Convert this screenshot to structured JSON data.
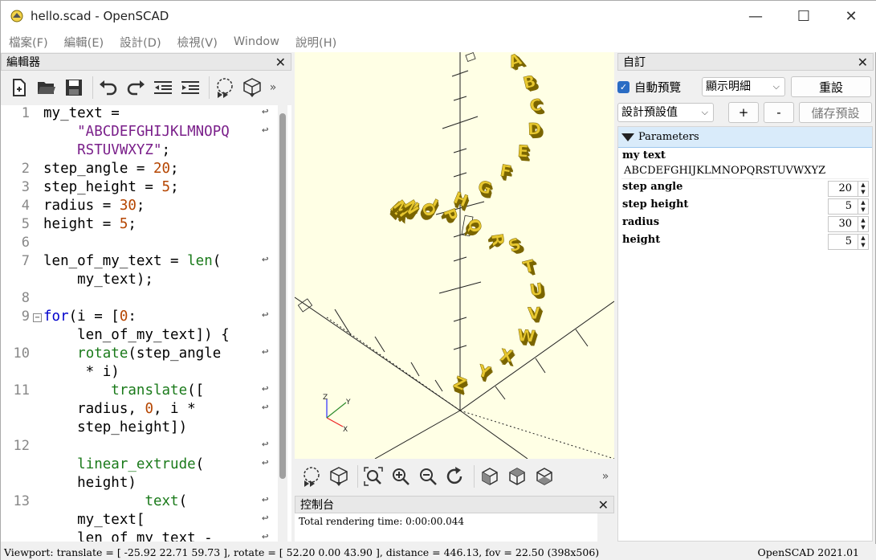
{
  "window": {
    "title": "hello.scad - OpenSCAD",
    "minimize": "—",
    "maximize": "☐",
    "close": "✕"
  },
  "menu": [
    "檔案(F)",
    "編輯(E)",
    "設計(D)",
    "檢視(V)",
    "Window",
    "說明(H)"
  ],
  "editor": {
    "title": "編輯器",
    "toolbar_icons": [
      "new-file-icon",
      "open-file-icon",
      "save-icon",
      "undo-icon",
      "redo-icon",
      "unindent-icon",
      "indent-icon",
      "preview-icon",
      "render-icon",
      "more-icon"
    ],
    "line_numbers": [
      "1",
      "2",
      "3",
      "4",
      "5",
      "6",
      "7",
      "8",
      "9",
      "10",
      "11",
      "12",
      "13"
    ],
    "lines": [
      "my_text =",
      "    \"ABCDEFGHIJKLMNOPQ",
      "    RSTUVWXYZ\";",
      "step_angle = 20;",
      "step_height = 5;",
      "radius = 30;",
      "height = 5;",
      "len_of_my_text = len(",
      "    my_text);",
      "for(i = [0:",
      "    len_of_my_text]) {",
      "    rotate(step_angle",
      "     * i)",
      "        translate([",
      "    radius, 0, i *",
      "    step_height])",
      "    linear_extrude(",
      "    height)",
      "            text(",
      "    my_text[",
      "    len_of_my_text -"
    ]
  },
  "view_toolbar_icons": [
    "preview-icon",
    "render-icon",
    "view-all-icon",
    "zoom-in-icon",
    "zoom-out-icon",
    "reset-view-icon",
    "view-right-icon",
    "view-top-icon",
    "view-bottom-icon",
    "more-icon"
  ],
  "console": {
    "title": "控制台",
    "text": "Total rendering time: 0:00:00.044"
  },
  "customizer": {
    "title": "自訂",
    "auto_preview_label": "自動預覽",
    "auto_preview_checked": true,
    "detail_select": "顯示明細",
    "reset_button": "重設",
    "preset_select": "設計預設值",
    "add_button": "+",
    "remove_button": "-",
    "save_preset_button": "儲存預設",
    "section_title": "Parameters",
    "params": {
      "my_text": {
        "label": "my text",
        "value": "ABCDEFGHIJKLMNOPQRSTUVWXYZ"
      },
      "step_angle": {
        "label": "step angle",
        "value": "20"
      },
      "step_height": {
        "label": "step height",
        "value": "5"
      },
      "radius": {
        "label": "radius",
        "value": "30"
      },
      "height": {
        "label": "height",
        "value": "5"
      }
    }
  },
  "statusbar": {
    "viewport": "Viewport: translate = [ -25.92 22.71 59.73 ], rotate = [ 52.20 0.00 43.90 ], distance = 446.13, fov = 22.50 (398x506)",
    "version": "OpenSCAD 2021.01"
  },
  "colors": {
    "model": "#e8c830",
    "model_dark": "#7a6500",
    "viewport_bg": "#ffffe5",
    "accent": "#2a6cc4"
  }
}
